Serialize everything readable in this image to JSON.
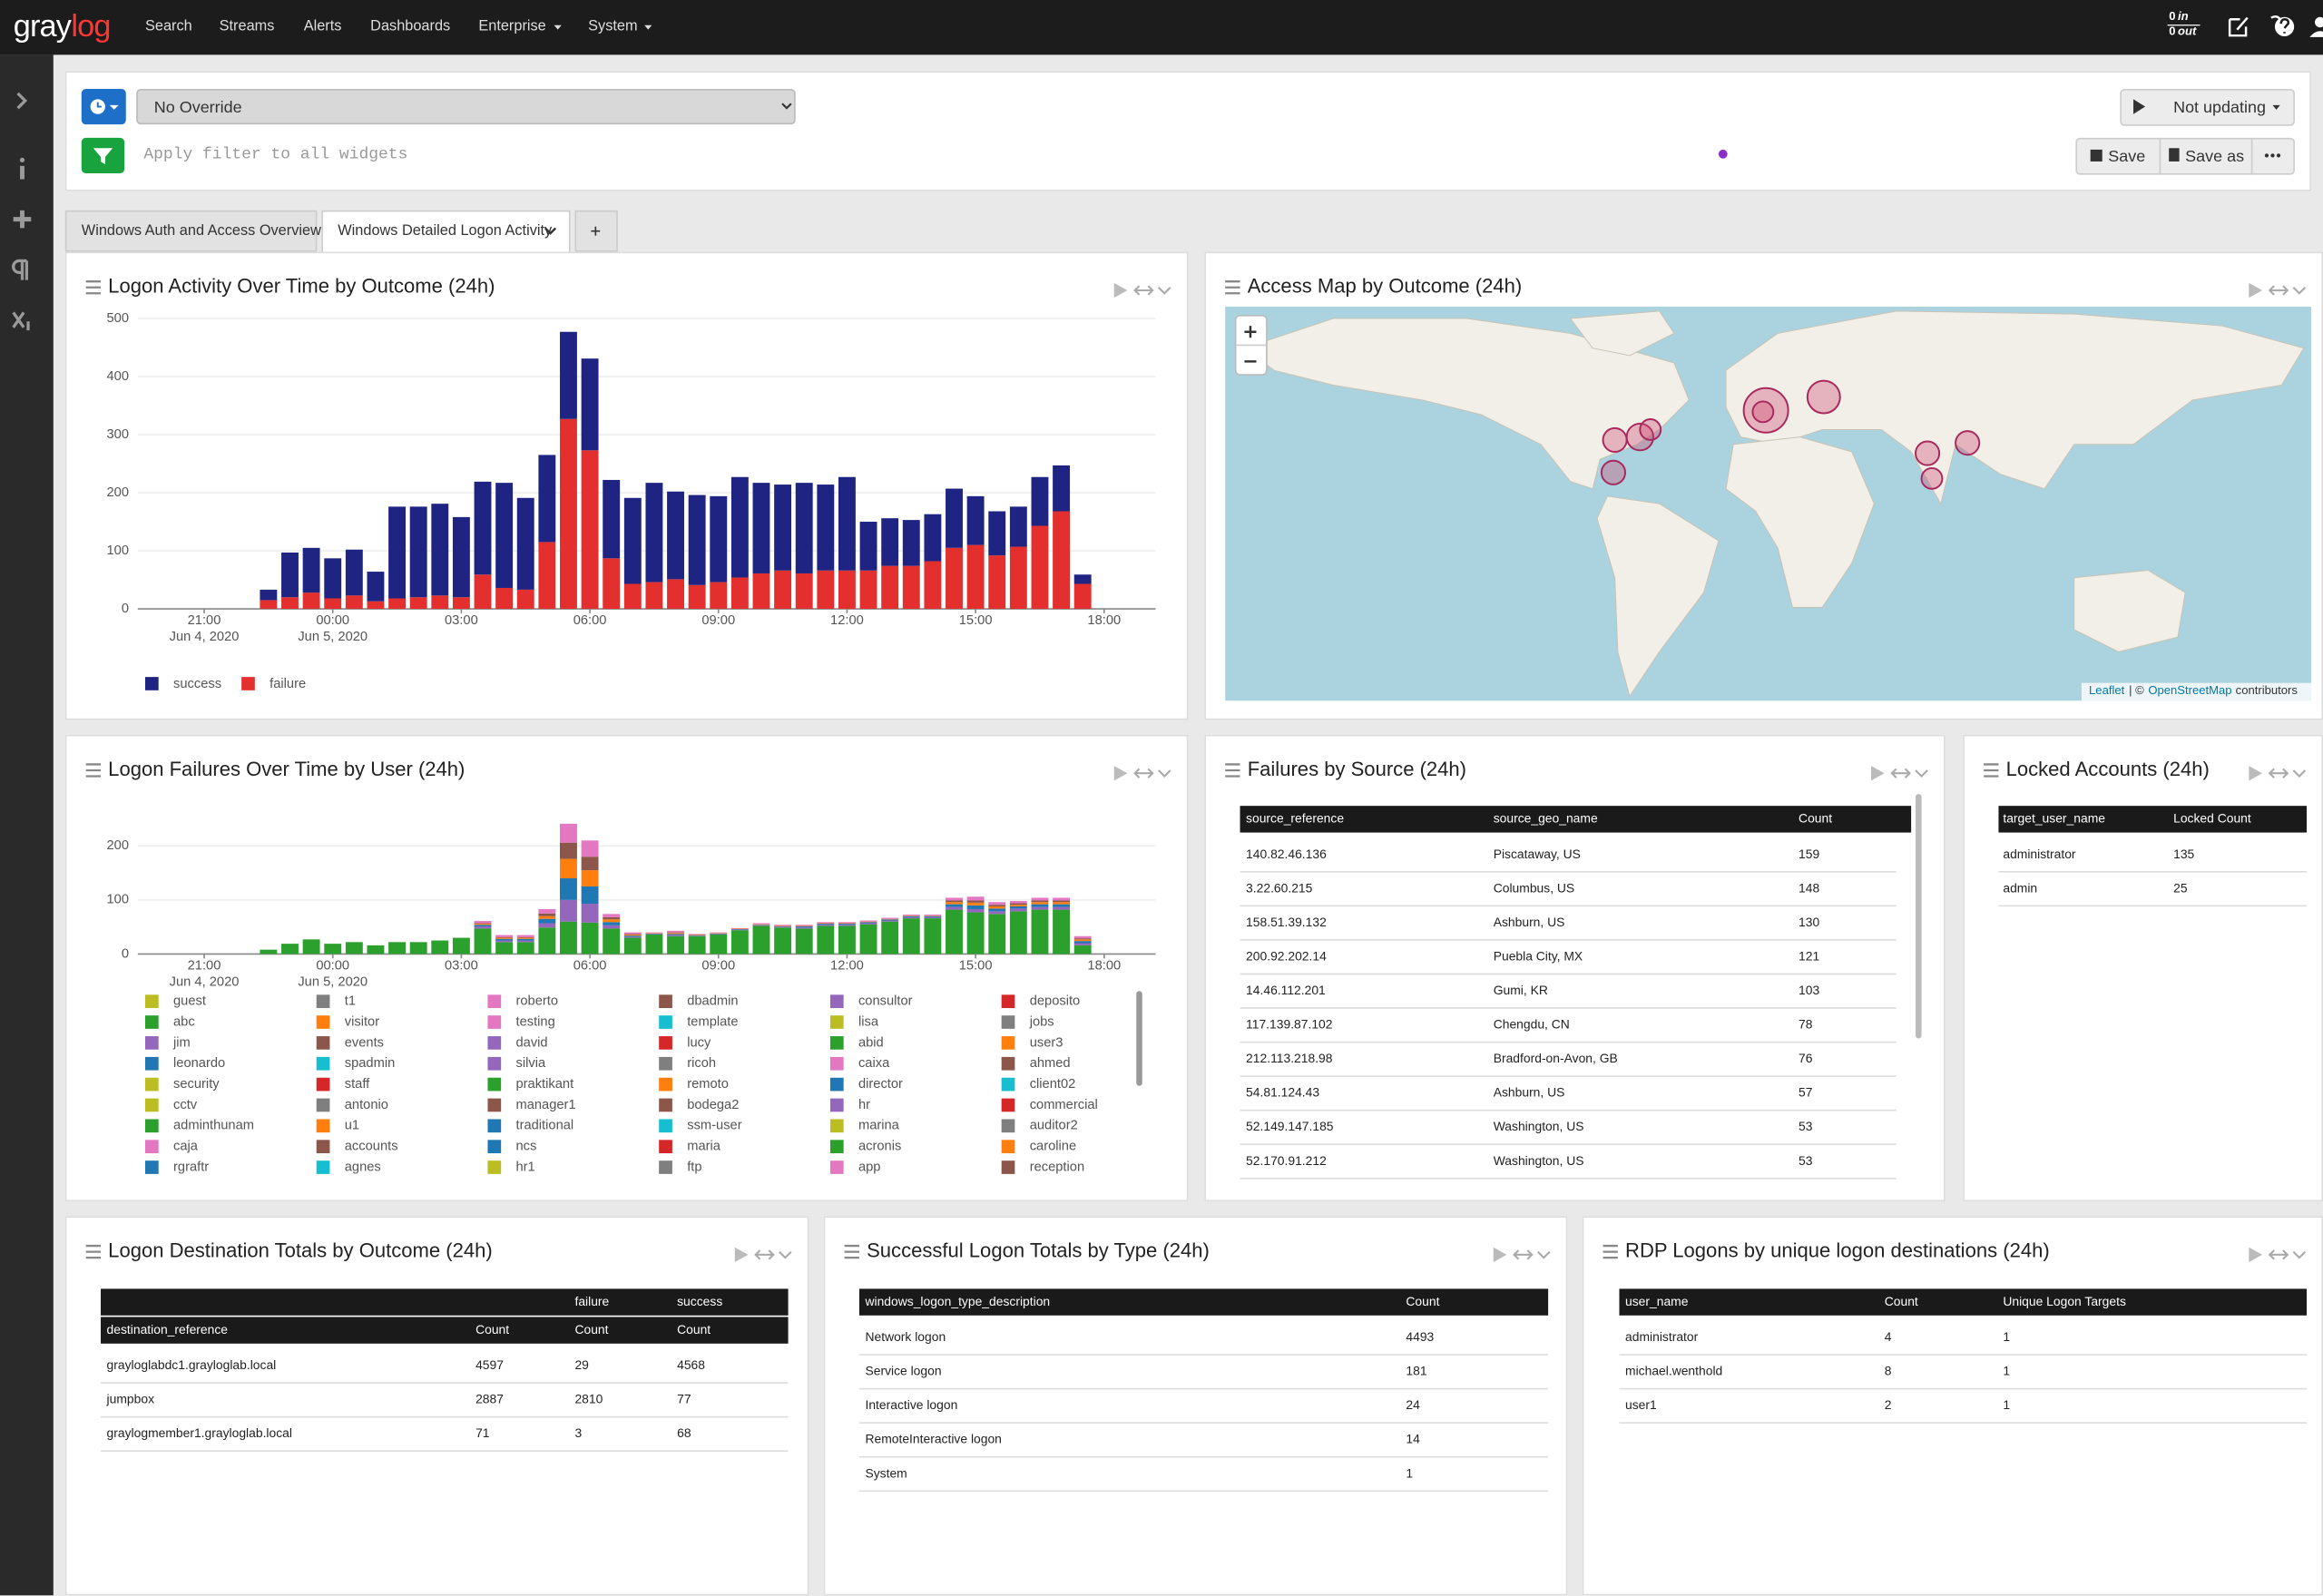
{
  "nav": {
    "logo": [
      "gray",
      "log"
    ],
    "items": [
      "Search",
      "Streams",
      "Alerts",
      "Dashboards",
      "Enterprise",
      "System"
    ],
    "throughput": [
      {
        "value": 0,
        "unit": "in"
      },
      {
        "value": 0,
        "unit": "out"
      }
    ]
  },
  "search_bar": {
    "timerange": "No Override",
    "filter_placeholder": "Apply filter to all widgets",
    "refresh": "Not updating",
    "save": "Save",
    "save_as": "Save as"
  },
  "tabs": [
    "Windows Auth and Access Overview",
    "Windows Detailed Logon Activity"
  ],
  "widgets": [
    {
      "title": "Logon Activity Over Time by Outcome (24h)",
      "chart": {
        "type": "bar",
        "stack": "reverse",
        "grid": true,
        "x": [
          "2020-06-04T22:30",
          "2020-06-04T23:00",
          "2020-06-04T23:30",
          "2020-06-05T00:00",
          "2020-06-05T00:30",
          "2020-06-05T01:00",
          "2020-06-05T01:30",
          "2020-06-05T02:00",
          "2020-06-05T02:30",
          "2020-06-05T03:00",
          "2020-06-05T03:30",
          "2020-06-05T04:00",
          "2020-06-05T04:30",
          "2020-06-05T05:00",
          "2020-06-05T05:30",
          "2020-06-05T06:00",
          "2020-06-05T06:30",
          "2020-06-05T07:00",
          "2020-06-05T07:30",
          "2020-06-05T08:00",
          "2020-06-05T08:30",
          "2020-06-05T09:00",
          "2020-06-05T09:30",
          "2020-06-05T10:00",
          "2020-06-05T10:30",
          "2020-06-05T11:00",
          "2020-06-05T11:30",
          "2020-06-05T12:00",
          "2020-06-05T12:30",
          "2020-06-05T13:00",
          "2020-06-05T13:30",
          "2020-06-05T14:00",
          "2020-06-05T14:30",
          "2020-06-05T15:00",
          "2020-06-05T15:30",
          "2020-06-05T16:00",
          "2020-06-05T16:30",
          "2020-06-05T17:00",
          "2020-06-05T17:30"
        ],
        "series": [
          {
            "name": "success",
            "color": "#1f2483",
            "values": [
              18,
              77,
              77,
              69,
              79,
              51,
              158,
              156,
              158,
              138,
              160,
              181,
              158,
              150,
              150,
              158,
              135,
              148,
              171,
              151,
              155,
              148,
              173,
              156,
              148,
              156,
              148,
              161,
              84,
              82,
              79,
              81,
              102,
              84,
              76,
              69,
              84,
              79,
              16
            ]
          },
          {
            "name": "failure",
            "color": "#e3302f",
            "values": [
              15,
              20,
              28,
              18,
              23,
              13,
              18,
              20,
              23,
              20,
              59,
              36,
              33,
              115,
              327,
              273,
              87,
              43,
              46,
              51,
              41,
              46,
              54,
              61,
              66,
              61,
              66,
              66,
              66,
              74,
              74,
              82,
              105,
              110,
              92,
              107,
              143,
              168,
              43
            ]
          }
        ],
        "xlim": [
          "2020-06-04T19:27",
          "2020-06-05T19:12"
        ],
        "ylim": [
          0,
          500
        ],
        "yticks": [
          0,
          100,
          200,
          300,
          400,
          500
        ],
        "xticks": [
          {
            "value": "2020-06-04T21:00",
            "label": "21:00"
          },
          {
            "value": "2020-06-05T00:00",
            "label": "00:00"
          },
          {
            "value": "2020-06-05T03:00",
            "label": "03:00"
          },
          {
            "value": "2020-06-05T06:00",
            "label": "06:00"
          },
          {
            "value": "2020-06-05T09:00",
            "label": "09:00"
          },
          {
            "value": "2020-06-05T12:00",
            "label": "12:00"
          },
          {
            "value": "2020-06-05T15:00",
            "label": "15:00"
          },
          {
            "value": "2020-06-05T18:00",
            "label": "18:00"
          }
        ],
        "xtick_dates": [
          "Jun 4, 2020",
          "Jun 5, 2020"
        ]
      }
    },
    {
      "title": "Access Map by Outcome (24h)",
      "attribution": {
        "leaflet": "Leaflet",
        "separator": "| ©",
        "osm": "OpenStreetMap",
        "suffix": "contributors"
      }
    },
    {
      "title": "Logon Failures Over Time by User (24h)",
      "chart": {
        "type": "bar",
        "grid": true,
        "x": [
          "2020-06-04T22:30",
          "2020-06-04T23:00",
          "2020-06-04T23:30",
          "2020-06-05T00:00",
          "2020-06-05T00:30",
          "2020-06-05T01:00",
          "2020-06-05T01:30",
          "2020-06-05T02:00",
          "2020-06-05T02:30",
          "2020-06-05T03:00",
          "2020-06-05T03:30",
          "2020-06-05T04:00",
          "2020-06-05T04:30",
          "2020-06-05T05:00",
          "2020-06-05T05:30",
          "2020-06-05T06:00",
          "2020-06-05T06:30",
          "2020-06-05T07:00",
          "2020-06-05T07:30",
          "2020-06-05T08:00",
          "2020-06-05T08:30",
          "2020-06-05T09:00",
          "2020-06-05T09:30",
          "2020-06-05T10:00",
          "2020-06-05T10:30",
          "2020-06-05T11:00",
          "2020-06-05T11:30",
          "2020-06-05T12:00",
          "2020-06-05T12:30",
          "2020-06-05T13:00",
          "2020-06-05T13:30",
          "2020-06-05T14:00",
          "2020-06-05T14:30",
          "2020-06-05T15:00",
          "2020-06-05T15:30",
          "2020-06-05T16:00",
          "2020-06-05T16:30",
          "2020-06-05T17:00",
          "2020-06-05T17:30"
        ],
        "series": [
          {
            "name": "guest",
            "color": "#bcbd22"
          },
          {
            "name": "abc",
            "color": "#2ca02c",
            "values": [
              8,
              19,
              27,
              19,
              22,
              16,
              22,
              22,
              25,
              30,
              47,
              22,
              22,
              49,
              60,
              58,
              47,
              30,
              36,
              33,
              33,
              36,
              44,
              52,
              49,
              47,
              52,
              52,
              55,
              60,
              66,
              66,
              82,
              77,
              74,
              79,
              82,
              82,
              16
            ]
          },
          {
            "name": "jim",
            "color": "#9467bd",
            "values": [
              0,
              0,
              0,
              0,
              0,
              0,
              0,
              0,
              0,
              0,
              4,
              3,
              3,
              8,
              40,
              35,
              6,
              2,
              1,
              2,
              1,
              1,
              1,
              1,
              1,
              2,
              2,
              2,
              2,
              2,
              2,
              2,
              5,
              6,
              5,
              5,
              5,
              5,
              4
            ]
          },
          {
            "name": "leonardo",
            "color": "#1f77b4",
            "values": [
              0,
              0,
              0,
              0,
              0,
              0,
              0,
              0,
              0,
              0,
              3,
              3,
              3,
              8,
              40,
              32,
              6,
              2,
              1,
              2,
              1,
              1,
              1,
              1,
              1,
              2,
              2,
              2,
              2,
              2,
              2,
              2,
              5,
              7,
              5,
              4,
              5,
              5,
              4
            ]
          },
          {
            "name": "security",
            "color": "#bcbd22"
          },
          {
            "name": "cctv",
            "color": "#bcbd22"
          },
          {
            "name": "adminthunam",
            "color": "#2ca02c"
          },
          {
            "name": "caja",
            "color": "#e377c2"
          },
          {
            "name": "rgraftr",
            "color": "#1f77b4"
          },
          {
            "name": "t1",
            "color": "#7f7f7f"
          },
          {
            "name": "visitor",
            "color": "#ff7f0e",
            "values": [
              0,
              0,
              0,
              0,
              0,
              0,
              0,
              0,
              0,
              0,
              2,
              2,
              2,
              5,
              36,
              30,
              5,
              2,
              1,
              2,
              1,
              1,
              1,
              1,
              1,
              1,
              1,
              1,
              1,
              1,
              1,
              1,
              4,
              5,
              4,
              3,
              4,
              4,
              3
            ]
          },
          {
            "name": "events",
            "color": "#8c564b",
            "values": [
              0,
              0,
              0,
              0,
              0,
              0,
              0,
              0,
              0,
              0,
              1,
              1,
              1,
              5,
              30,
              25,
              4,
              1,
              0,
              1,
              0,
              0,
              0,
              0,
              0,
              0,
              0,
              0,
              0,
              0,
              0,
              0,
              3,
              4,
              3,
              3,
              3,
              3,
              2
            ]
          },
          {
            "name": "spadmin",
            "color": "#17becf"
          },
          {
            "name": "staff",
            "color": "#d62728"
          },
          {
            "name": "antonio",
            "color": "#7f7f7f"
          },
          {
            "name": "u1",
            "color": "#ff7f0e"
          },
          {
            "name": "accounts",
            "color": "#8c564b"
          },
          {
            "name": "agnes",
            "color": "#17becf"
          },
          {
            "name": "roberto",
            "color": "#e377c2",
            "values": [
              0,
              0,
              0,
              0,
              0,
              0,
              0,
              0,
              0,
              0,
              4,
              4,
              4,
              8,
              35,
              30,
              6,
              3,
              1,
              3,
              1,
              1,
              1,
              2,
              2,
              2,
              2,
              2,
              2,
              2,
              2,
              2,
              5,
              7,
              5,
              4,
              5,
              5,
              4
            ]
          },
          {
            "name": "testing",
            "color": "#e377c2"
          },
          {
            "name": "david",
            "color": "#9467bd"
          },
          {
            "name": "silvia",
            "color": "#9467bd"
          },
          {
            "name": "praktikant",
            "color": "#2ca02c"
          },
          {
            "name": "manager1",
            "color": "#8c564b"
          },
          {
            "name": "traditional",
            "color": "#1f77b4"
          },
          {
            "name": "ncs",
            "color": "#1f77b4"
          },
          {
            "name": "hr1",
            "color": "#bcbd22"
          },
          {
            "name": "dbadmin",
            "color": "#8c564b"
          },
          {
            "name": "template",
            "color": "#17becf"
          },
          {
            "name": "lucy",
            "color": "#d62728"
          },
          {
            "name": "ricoh",
            "color": "#7f7f7f"
          },
          {
            "name": "remoto",
            "color": "#ff7f0e"
          },
          {
            "name": "bodega2",
            "color": "#8c564b"
          },
          {
            "name": "ssm-user",
            "color": "#17becf"
          },
          {
            "name": "maria",
            "color": "#d62728"
          },
          {
            "name": "ftp",
            "color": "#7f7f7f"
          },
          {
            "name": "consultor",
            "color": "#9467bd"
          },
          {
            "name": "lisa",
            "color": "#bcbd22"
          },
          {
            "name": "abid",
            "color": "#2ca02c"
          },
          {
            "name": "caixa",
            "color": "#e377c2"
          },
          {
            "name": "director",
            "color": "#1f77b4"
          },
          {
            "name": "hr",
            "color": "#9467bd"
          },
          {
            "name": "marina",
            "color": "#bcbd22"
          },
          {
            "name": "acronis",
            "color": "#2ca02c"
          },
          {
            "name": "app",
            "color": "#e377c2"
          },
          {
            "name": "deposito",
            "color": "#d62728"
          },
          {
            "name": "jobs",
            "color": "#7f7f7f"
          },
          {
            "name": "user3",
            "color": "#ff7f0e"
          },
          {
            "name": "ahmed",
            "color": "#8c564b"
          },
          {
            "name": "client02",
            "color": "#17becf"
          },
          {
            "name": "commercial",
            "color": "#d62728"
          },
          {
            "name": "auditor2",
            "color": "#7f7f7f"
          },
          {
            "name": "caroline",
            "color": "#ff7f0e"
          },
          {
            "name": "reception",
            "color": "#8c564b"
          }
        ],
        "xlim": [
          "2020-06-04T19:27",
          "2020-06-05T19:12"
        ],
        "ylim": [
          0,
          285
        ],
        "yticks": [
          0,
          100,
          200
        ],
        "xticks": [
          {
            "value": "2020-06-04T21:00",
            "label": "21:00"
          },
          {
            "value": "2020-06-05T00:00",
            "label": "00:00"
          },
          {
            "value": "2020-06-05T03:00",
            "label": "03:00"
          },
          {
            "value": "2020-06-05T06:00",
            "label": "06:00"
          },
          {
            "value": "2020-06-05T09:00",
            "label": "09:00"
          },
          {
            "value": "2020-06-05T12:00",
            "label": "12:00"
          },
          {
            "value": "2020-06-05T15:00",
            "label": "15:00"
          },
          {
            "value": "2020-06-05T18:00",
            "label": "18:00"
          }
        ],
        "xtick_dates": [
          "Jun 4, 2020",
          "Jun 5, 2020"
        ]
      }
    },
    {
      "title": "Failures by Source (24h)",
      "table": {
        "columns": [
          "source_reference",
          "source_geo_name",
          "Count"
        ],
        "rows": [
          [
            "140.82.46.136",
            "Piscataway, US",
            159
          ],
          [
            "3.22.60.215",
            "Columbus, US",
            148
          ],
          [
            "158.51.39.132",
            "Ashburn, US",
            130
          ],
          [
            "200.92.202.14",
            "Puebla City, MX",
            121
          ],
          [
            "14.46.112.201",
            "Gumi, KR",
            103
          ],
          [
            "117.139.87.102",
            "Chengdu, CN",
            78
          ],
          [
            "212.113.218.98",
            "Bradford-on-Avon, GB",
            76
          ],
          [
            "54.81.124.43",
            "Ashburn, US",
            57
          ],
          [
            "52.149.147.185",
            "Washington, US",
            53
          ],
          [
            "52.170.91.212",
            "Washington, US",
            53
          ]
        ]
      }
    },
    {
      "title": "Locked Accounts (24h)",
      "table": {
        "columns": [
          "target_user_name",
          "Locked Count"
        ],
        "rows": [
          [
            "administrator",
            135
          ],
          [
            "admin",
            25
          ]
        ]
      }
    },
    {
      "title": "Logon Destination Totals by Outcome (24h)",
      "table": {
        "group_headers": [
          "failure",
          "success"
        ],
        "columns": [
          "destination_reference",
          "Count",
          "Count",
          "Count"
        ],
        "rows": [
          [
            "grayloglabdc1.grayloglab.local",
            4597,
            29,
            4568
          ],
          [
            "jumpbox",
            2887,
            2810,
            77
          ],
          [
            "graylogmember1.grayloglab.local",
            71,
            3,
            68
          ]
        ]
      }
    },
    {
      "title": "Successful Logon Totals by Type (24h)",
      "table": {
        "columns": [
          "windows_logon_type_description",
          "Count"
        ],
        "rows": [
          [
            "Network logon",
            4493
          ],
          [
            "Service logon",
            181
          ],
          [
            "Interactive logon",
            24
          ],
          [
            "RemoteInteractive logon",
            14
          ],
          [
            "System",
            1
          ]
        ]
      }
    },
    {
      "title": "RDP Logons by unique logon destinations (24h)",
      "table": {
        "columns": [
          "user_name",
          "Count",
          "Unique Logon Targets"
        ],
        "rows": [
          [
            "administrator",
            4,
            1
          ],
          [
            "michael.wenthold",
            8,
            1
          ],
          [
            "user1",
            2,
            1
          ]
        ]
      }
    }
  ]
}
